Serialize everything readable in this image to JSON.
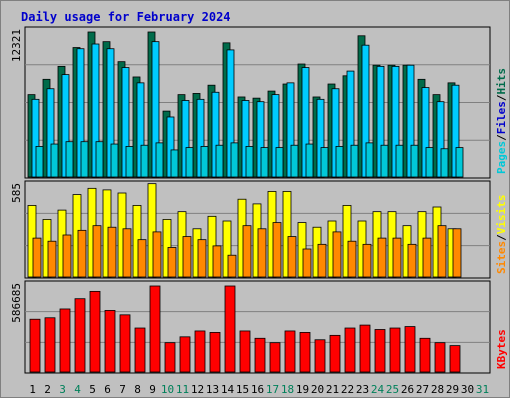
{
  "title": "Daily usage for February 2024",
  "colors": {
    "hits": "#006b4a",
    "files": "#00ccff",
    "pages": "#00c8d8",
    "visits": "#ffff00",
    "sites": "#ff8800",
    "kbytes": "#ff0000",
    "weekend_label": "#00805a",
    "weekday_label": "#000000"
  },
  "chart_data": [
    {
      "type": "bar",
      "panel": "hits-files-pages",
      "categories": [
        "1",
        "2",
        "3",
        "4",
        "5",
        "6",
        "7",
        "8",
        "9",
        "10",
        "11",
        "12",
        "13",
        "14",
        "15",
        "16",
        "17",
        "18",
        "19",
        "20",
        "21",
        "22",
        "23",
        "24",
        "25",
        "26",
        "27",
        "28",
        "29",
        "30",
        "31"
      ],
      "weekend_days": [
        "3",
        "4",
        "10",
        "11",
        "17",
        "18",
        "24",
        "25",
        "31"
      ],
      "ymax": 12321,
      "ymax_label": "12321",
      "axis_labels": [
        "Pages",
        "Files",
        "Hits"
      ],
      "series": [
        {
          "name": "Hits",
          "values": [
            7000,
            8300,
            9400,
            11000,
            12321,
            11500,
            9800,
            8500,
            12321,
            5600,
            7000,
            7100,
            7800,
            11400,
            6800,
            6700,
            7300,
            7900,
            9600,
            6800,
            7900,
            8600,
            12000,
            9500,
            9500,
            9500,
            8300,
            7000,
            8000,
            null,
            null
          ]
        },
        {
          "name": "Files",
          "values": [
            6600,
            7500,
            8700,
            10900,
            11300,
            10900,
            9300,
            8000,
            11500,
            5100,
            6500,
            6600,
            7200,
            10800,
            6500,
            6400,
            7000,
            8000,
            9300,
            6600,
            7500,
            9000,
            11200,
            9400,
            9400,
            9500,
            7600,
            6400,
            7800,
            null,
            null
          ]
        },
        {
          "name": "Pages",
          "values": [
            2600,
            2800,
            3000,
            3000,
            3000,
            2800,
            2600,
            2700,
            2900,
            2300,
            2500,
            2600,
            2700,
            2900,
            2600,
            2500,
            2500,
            2700,
            2800,
            2500,
            2600,
            2700,
            2900,
            2700,
            2700,
            2700,
            2500,
            2400,
            2500,
            null,
            null
          ]
        }
      ]
    },
    {
      "type": "bar",
      "panel": "visits-sites",
      "categories": [
        "1",
        "2",
        "3",
        "4",
        "5",
        "6",
        "7",
        "8",
        "9",
        "10",
        "11",
        "12",
        "13",
        "14",
        "15",
        "16",
        "17",
        "18",
        "19",
        "20",
        "21",
        "22",
        "23",
        "24",
        "25",
        "26",
        "27",
        "28",
        "29",
        "30",
        "31"
      ],
      "ymax": 585,
      "ymax_label": "585",
      "axis_labels": [
        "Sites",
        "Visits"
      ],
      "series": [
        {
          "name": "Visits",
          "values": [
            460,
            370,
            430,
            530,
            570,
            560,
            540,
            460,
            600,
            370,
            420,
            310,
            390,
            360,
            500,
            470,
            550,
            550,
            350,
            320,
            360,
            460,
            360,
            420,
            420,
            330,
            420,
            450,
            310,
            null,
            null
          ]
        },
        {
          "name": "Sites",
          "values": [
            250,
            230,
            270,
            300,
            330,
            320,
            310,
            240,
            290,
            190,
            260,
            240,
            200,
            140,
            330,
            310,
            350,
            260,
            180,
            210,
            290,
            230,
            210,
            250,
            250,
            210,
            250,
            330,
            310,
            null,
            null
          ]
        }
      ]
    },
    {
      "type": "bar",
      "panel": "kbytes",
      "categories": [
        "1",
        "2",
        "3",
        "4",
        "5",
        "6",
        "7",
        "8",
        "9",
        "10",
        "11",
        "12",
        "13",
        "14",
        "15",
        "16",
        "17",
        "18",
        "19",
        "20",
        "21",
        "22",
        "23",
        "24",
        "25",
        "26",
        "27",
        "28",
        "29",
        "30",
        "31"
      ],
      "ymax": 586685,
      "ymax_label": "586685",
      "axis_labels": [
        "KBytes"
      ],
      "series": [
        {
          "name": "KBytes",
          "values": [
            360000,
            370000,
            430000,
            500000,
            550000,
            420000,
            390000,
            300000,
            586685,
            200000,
            240000,
            280000,
            270000,
            586685,
            280000,
            230000,
            200000,
            280000,
            270000,
            220000,
            250000,
            300000,
            320000,
            290000,
            300000,
            310000,
            230000,
            200000,
            180000,
            null,
            null
          ]
        }
      ]
    }
  ]
}
